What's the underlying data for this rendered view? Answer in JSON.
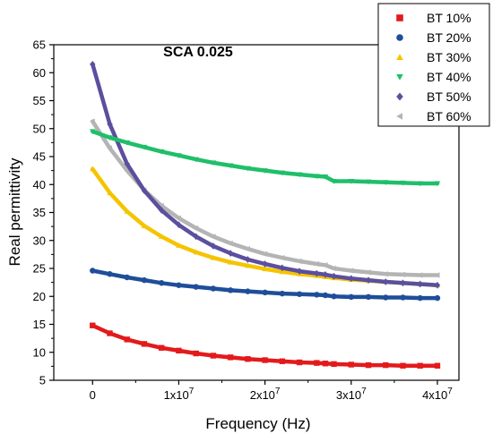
{
  "chart_data": {
    "type": "scatter",
    "title": "SCA 0.025",
    "xlabel": "Frequency (Hz)",
    "ylabel": "Real permittivity",
    "xlim": [
      -4500000,
      42500000
    ],
    "ylim": [
      5,
      65
    ],
    "x_ticks": [
      0,
      10000000,
      20000000,
      30000000,
      40000000
    ],
    "x_tick_labels": [
      {
        "mantissa": "0",
        "exp": ""
      },
      {
        "mantissa": "1x10",
        "exp": "7"
      },
      {
        "mantissa": "2x10",
        "exp": "7"
      },
      {
        "mantissa": "3x10",
        "exp": "7"
      },
      {
        "mantissa": "4x10",
        "exp": "7"
      }
    ],
    "y_ticks": [
      5,
      10,
      15,
      20,
      25,
      30,
      35,
      40,
      45,
      50,
      55,
      60,
      65
    ],
    "y_tick_labels": [
      "5",
      "10",
      "15",
      "20",
      "25",
      "30",
      "35",
      "40",
      "45",
      "50",
      "55",
      "60",
      "65"
    ],
    "grid": false,
    "legend_position": "top-right",
    "x": [
      0,
      2000000,
      4000000,
      6000000,
      8000000,
      10000000,
      12000000,
      14000000,
      16000000,
      18000000,
      20000000,
      22000000,
      24000000,
      26000000,
      27000000,
      28000000,
      30000000,
      32000000,
      34000000,
      36000000,
      38000000,
      40000000
    ],
    "series": [
      {
        "name": "BT 10%",
        "marker": "square",
        "color": "#e31a1c",
        "values": [
          14.8,
          13.4,
          12.3,
          11.5,
          10.8,
          10.3,
          9.8,
          9.4,
          9.1,
          8.8,
          8.6,
          8.4,
          8.2,
          8.1,
          8.0,
          7.9,
          7.8,
          7.7,
          7.7,
          7.6,
          7.6,
          7.6
        ]
      },
      {
        "name": "BT 20%",
        "marker": "circle",
        "color": "#1f4e99",
        "values": [
          24.6,
          24.0,
          23.4,
          22.9,
          22.4,
          22.0,
          21.7,
          21.4,
          21.1,
          20.9,
          20.7,
          20.5,
          20.4,
          20.3,
          20.2,
          20.0,
          19.9,
          19.9,
          19.8,
          19.8,
          19.7,
          19.7
        ]
      },
      {
        "name": "BT 30%",
        "marker": "triangle-up",
        "color": "#f5c400",
        "values": [
          42.8,
          38.5,
          35.2,
          32.6,
          30.7,
          29.1,
          27.9,
          26.9,
          26.1,
          25.5,
          24.9,
          24.4,
          24.0,
          23.7,
          23.5,
          23.3,
          23.0,
          22.8,
          22.6,
          22.4,
          22.2,
          22.0
        ]
      },
      {
        "name": "BT 40%",
        "marker": "triangle-down",
        "color": "#1fbf6a",
        "values": [
          49.5,
          48.4,
          47.5,
          46.7,
          45.9,
          45.2,
          44.5,
          43.9,
          43.4,
          42.9,
          42.5,
          42.1,
          41.8,
          41.5,
          41.4,
          40.6,
          40.6,
          40.5,
          40.4,
          40.3,
          40.2,
          40.2
        ]
      },
      {
        "name": "BT 50%",
        "marker": "diamond",
        "color": "#5b4f9e",
        "values": [
          61.5,
          50.8,
          43.7,
          38.9,
          35.4,
          32.8,
          30.7,
          29.0,
          27.7,
          26.6,
          25.8,
          25.1,
          24.5,
          24.1,
          23.9,
          23.6,
          23.2,
          22.9,
          22.6,
          22.4,
          22.2,
          22.0
        ]
      },
      {
        "name": "BT 60%",
        "marker": "triangle-left",
        "color": "#b4b4b4",
        "values": [
          51.3,
          46.5,
          42.5,
          39.0,
          36.2,
          34.0,
          32.2,
          30.7,
          29.5,
          28.5,
          27.6,
          26.9,
          26.3,
          25.8,
          25.6,
          25.0,
          24.6,
          24.3,
          24.0,
          23.9,
          23.8,
          23.8
        ]
      }
    ]
  }
}
